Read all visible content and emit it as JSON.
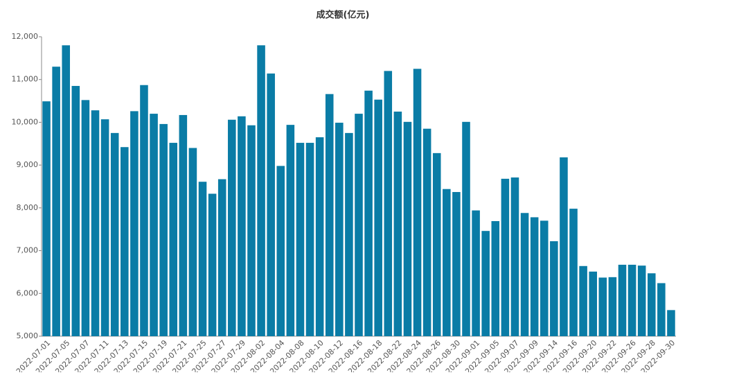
{
  "chart_data": {
    "type": "bar",
    "title": "成交额(亿元)",
    "categories": [
      "2022-07-01",
      null,
      "2022-07-05",
      null,
      "2022-07-07",
      null,
      "2022-07-11",
      null,
      "2022-07-13",
      null,
      "2022-07-15",
      null,
      "2022-07-19",
      null,
      "2022-07-21",
      null,
      "2022-07-25",
      null,
      "2022-07-27",
      null,
      "2022-07-29",
      null,
      "2022-08-02",
      null,
      "2022-08-04",
      null,
      "2022-08-08",
      null,
      "2022-08-10",
      null,
      "2022-08-12",
      null,
      "2022-08-16",
      null,
      "2022-08-18",
      null,
      "2022-08-22",
      null,
      "2022-08-24",
      null,
      "2022-08-26",
      null,
      "2022-08-30",
      null,
      "2022-09-01",
      null,
      "2022-09-05",
      null,
      "2022-09-07",
      null,
      "2022-09-09",
      null,
      "2022-09-14",
      null,
      "2022-09-16",
      null,
      "2022-09-20",
      null,
      "2022-09-22",
      null,
      "2022-09-26",
      null,
      "2022-09-28",
      null,
      "2022-09-30"
    ],
    "values": [
      10490,
      11300,
      11800,
      10850,
      10520,
      10280,
      10070,
      9750,
      9420,
      10260,
      10870,
      10200,
      9960,
      9520,
      10170,
      9400,
      8610,
      8330,
      8670,
      10060,
      10140,
      9930,
      11800,
      11140,
      8980,
      9940,
      9520,
      9520,
      9650,
      10660,
      9990,
      9750,
      10200,
      10740,
      10530,
      11200,
      10250,
      10010,
      11250,
      9850,
      9280,
      8440,
      8370,
      10010,
      7940,
      7460,
      7690,
      8680,
      8710,
      7880,
      7780,
      7700,
      7220,
      9180,
      7980,
      6640,
      6510,
      6370,
      6380,
      6670,
      6670,
      6650,
      6470,
      6240,
      5610
    ],
    "color": "#0a7ca6",
    "ylim": [
      5000,
      12000
    ],
    "yticks": [
      {
        "value": 5000,
        "label": "5,000"
      },
      {
        "value": 6000,
        "label": "6,000"
      },
      {
        "value": 7000,
        "label": "7,000"
      },
      {
        "value": 8000,
        "label": "8,000"
      },
      {
        "value": 9000,
        "label": "9,000"
      },
      {
        "value": 10000,
        "label": "10,000"
      },
      {
        "value": 11000,
        "label": "11,000"
      },
      {
        "value": 12000,
        "label": "12,000"
      }
    ]
  }
}
